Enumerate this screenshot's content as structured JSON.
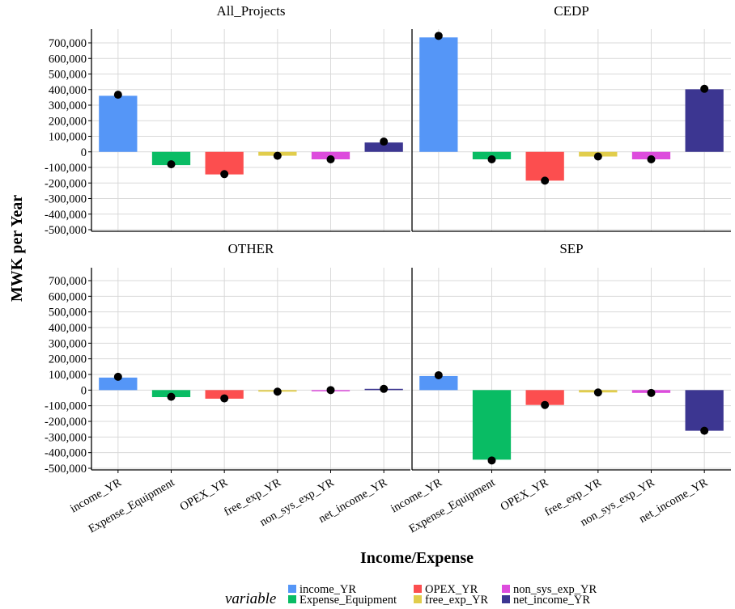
{
  "chart_data": {
    "type": "bar",
    "xlabel": "Income/Expense",
    "ylabel": "MWK per Year",
    "ylim": [
      -500000,
      700000
    ],
    "yticks": [
      -500000,
      -400000,
      -300000,
      -200000,
      -100000,
      0,
      100000,
      200000,
      300000,
      400000,
      500000,
      600000,
      700000
    ],
    "ytick_labels": [
      "-500,000",
      "-400,000",
      "-300,000",
      "-200,000",
      "-100,000",
      "0",
      "100,000",
      "200,000",
      "300,000",
      "400,000",
      "500,000",
      "600,000",
      "700,000"
    ],
    "categories": [
      "income_YR",
      "Expense_Equipment",
      "OPEX_YR",
      "free_exp_YR",
      "non_sys_exp_YR",
      "net_income_YR"
    ],
    "colors": [
      "#5596F7",
      "#09BC64",
      "#FC4E4F",
      "#E1CD4C",
      "#DD4CDD",
      "#3C3691"
    ],
    "grid": true,
    "legend": {
      "title": "variable",
      "position": "bottom",
      "entries": [
        "income_YR",
        "Expense_Equipment",
        "OPEX_YR",
        "free_exp_YR",
        "non_sys_exp_YR",
        "net_income_YR"
      ]
    },
    "facets": [
      {
        "title": "All_Projects",
        "values": [
          360000,
          -85000,
          -145000,
          -25000,
          -48000,
          60000
        ],
        "points": [
          367000,
          -80000,
          -143000,
          -25000,
          -48000,
          66000
        ]
      },
      {
        "title": "CEDP",
        "values": [
          735000,
          -48000,
          -185000,
          -30000,
          -48000,
          402000
        ],
        "points": [
          745000,
          -48000,
          -185000,
          -30000,
          -48000,
          405000
        ]
      },
      {
        "title": "OTHER",
        "values": [
          80000,
          -45000,
          -55000,
          -10000,
          -2000,
          8000
        ],
        "points": [
          85000,
          -43000,
          -53000,
          -10000,
          0,
          8000
        ]
      },
      {
        "title": "SEP",
        "values": [
          90000,
          -445000,
          -95000,
          -15000,
          -18000,
          -260000
        ],
        "points": [
          95000,
          -450000,
          -95000,
          -15000,
          -18000,
          -260000
        ]
      }
    ]
  }
}
